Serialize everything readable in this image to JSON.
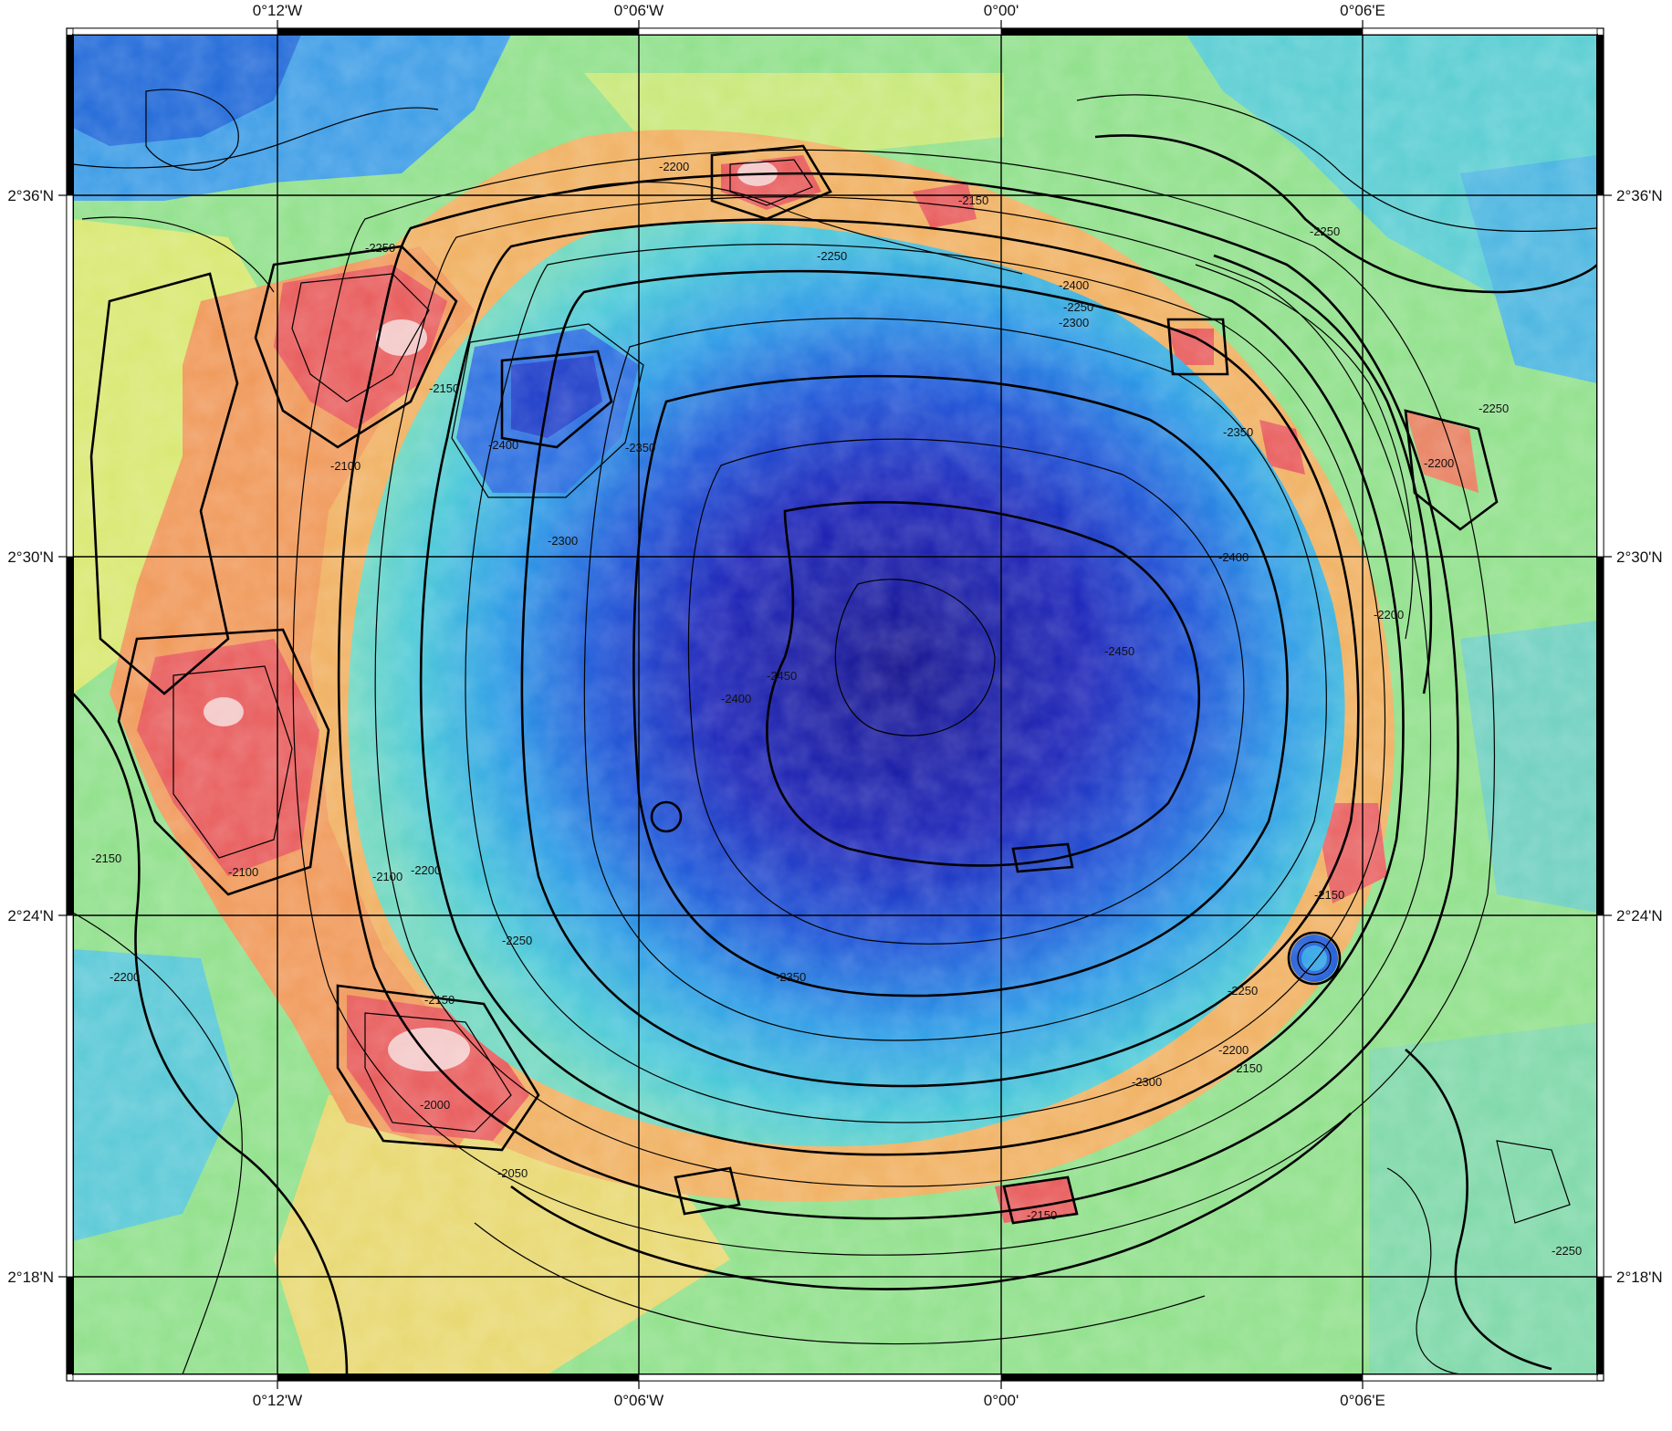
{
  "map": {
    "top_longitude_ticks": [
      "0°12'W",
      "0°06'W",
      "0°00'",
      "0°06'E"
    ],
    "bottom_longitude_ticks": [
      "0°12'W",
      "0°06'W",
      "0°00'",
      "0°06'E"
    ],
    "left_latitude_ticks": [
      "2°36'N",
      "2°30'N",
      "2°24'N",
      "2°18'N"
    ],
    "right_latitude_ticks": [
      "2°36'N",
      "2°30'N",
      "2°24'N",
      "2°18'N"
    ],
    "contour_labels": [
      {
        "text": "-2200"
      },
      {
        "text": "-2150"
      },
      {
        "text": "-2250"
      },
      {
        "text": "-2250"
      },
      {
        "text": "-2250"
      },
      {
        "text": "-2400"
      },
      {
        "text": "-2250"
      },
      {
        "text": "-2300"
      },
      {
        "text": "-2150"
      },
      {
        "text": "-2400"
      },
      {
        "text": "-2350"
      },
      {
        "text": "-2100"
      },
      {
        "text": "-2250"
      },
      {
        "text": "-2200"
      },
      {
        "text": "-2350"
      },
      {
        "text": "-2300"
      },
      {
        "text": "-2400"
      },
      {
        "text": "-2450"
      },
      {
        "text": "-2450"
      },
      {
        "text": "-2400"
      },
      {
        "text": "-2200"
      },
      {
        "text": "-2150"
      },
      {
        "text": "-2100"
      },
      {
        "text": "-2100"
      },
      {
        "text": "-2200"
      },
      {
        "text": "-2150"
      },
      {
        "text": "-2250"
      },
      {
        "text": "-2200"
      },
      {
        "text": "-2150"
      },
      {
        "text": "-2350"
      },
      {
        "text": "-2250"
      },
      {
        "text": "-2200"
      },
      {
        "text": "-2150"
      },
      {
        "text": "-2000"
      },
      {
        "text": "-2050"
      },
      {
        "text": "-2300"
      },
      {
        "text": "-2150"
      },
      {
        "text": "-2250"
      }
    ],
    "colors": {
      "crater_floor": "#1a1aa8",
      "inner_wall": "#1e7be0",
      "lower_slope": "#4cc8d8",
      "plain": "#8fe08a",
      "plain_high": "#d8e870",
      "rim": "#f0a860",
      "rim_peak": "#e85a5a",
      "summit": "#f4c8c8"
    }
  }
}
